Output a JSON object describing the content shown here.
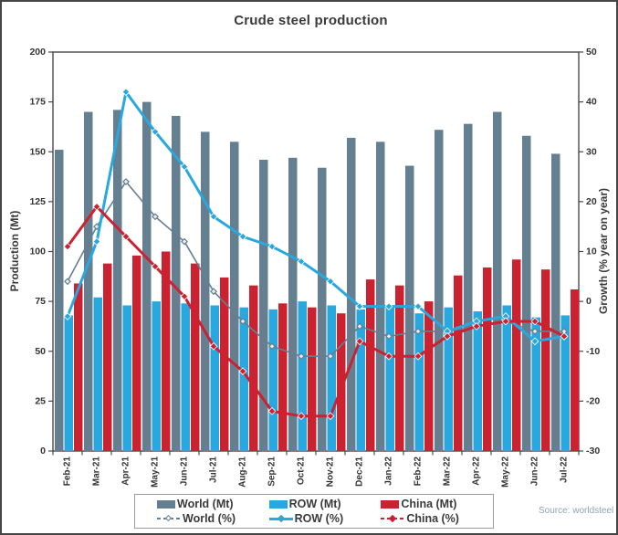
{
  "title": "Crude steel production",
  "source": "Source: worldsteel",
  "chart_data": {
    "type": "combo: grouped bar + line",
    "categories": [
      "Feb-21",
      "Mar-21",
      "Apr-21",
      "May-21",
      "Jun-21",
      "Jul-21",
      "Aug-21",
      "Sep-21",
      "Oct-21",
      "Nov-21",
      "Dec-21",
      "Jan-22",
      "Feb-22",
      "Mar-22",
      "Apr-22",
      "May-22",
      "Jun-22",
      "Jul-22"
    ],
    "bar_series": [
      {
        "name": "World (Mt)",
        "axis": "left",
        "color": "#657f90",
        "values": [
          151,
          170,
          171,
          175,
          168,
          160,
          155,
          146,
          147,
          142,
          157,
          155,
          143,
          161,
          164,
          170,
          158,
          149
        ]
      },
      {
        "name": "ROW (Mt)",
        "axis": "left",
        "color": "#29a8df",
        "values": [
          68,
          77,
          73,
          75,
          74,
          73,
          72,
          71,
          75,
          73,
          71,
          73,
          69,
          72,
          70,
          73,
          67,
          68
        ]
      },
      {
        "name": "China (Mt)",
        "axis": "left",
        "color": "#cc2130",
        "values": [
          84,
          94,
          98,
          100,
          94,
          87,
          83,
          74,
          72,
          69,
          86,
          83,
          75,
          88,
          92,
          96,
          91,
          81
        ]
      }
    ],
    "line_series": [
      {
        "name": "World (%)",
        "axis": "right",
        "color": "#657f90",
        "marker": "open-diamond",
        "stroke_width": 1.6,
        "values": [
          4,
          15,
          24,
          17,
          12,
          2,
          -4,
          -9,
          -11,
          -11,
          -5,
          -7,
          -6,
          -6,
          -5,
          -4,
          -6,
          -6
        ]
      },
      {
        "name": "ROW (%)",
        "axis": "right",
        "color": "#29a8df",
        "marker": "diamond",
        "stroke_width": 3,
        "values": [
          -3,
          12,
          42,
          34,
          27,
          17,
          13,
          11,
          8,
          4,
          -1,
          -1,
          -1,
          -6,
          -4,
          -3,
          -8,
          -7
        ]
      },
      {
        "name": "China (%)",
        "axis": "right",
        "color": "#cc2130",
        "marker": "diamond",
        "stroke_width": 3,
        "values": [
          11,
          19,
          13,
          7,
          1,
          -9,
          -14,
          -22,
          -23,
          -23,
          -8,
          -11,
          -11,
          -7,
          -5,
          -4,
          -4,
          -7
        ]
      }
    ],
    "left_axis": {
      "label": "Production (Mt)",
      "min": 0,
      "max": 200,
      "ticks": [
        0,
        25,
        50,
        75,
        100,
        125,
        150,
        175,
        200
      ]
    },
    "right_axis": {
      "label": "Growth (% year on year)",
      "min": -30,
      "max": 50,
      "ticks": [
        -30,
        -20,
        -10,
        0,
        10,
        20,
        30,
        40,
        50
      ]
    },
    "grid": false,
    "legend_position": "bottom"
  },
  "legend": {
    "items": [
      {
        "label": "World (Mt)",
        "type": "bar",
        "color": "#657f90"
      },
      {
        "label": "ROW (Mt)",
        "type": "bar",
        "color": "#29a8df"
      },
      {
        "label": "China (Mt)",
        "type": "bar",
        "color": "#cc2130"
      },
      {
        "label": "World (%)",
        "type": "line",
        "color": "#657f90"
      },
      {
        "label": "ROW (%)",
        "type": "line",
        "color": "#29a8df"
      },
      {
        "label": "China (%)",
        "type": "line",
        "color": "#cc2130"
      }
    ]
  }
}
